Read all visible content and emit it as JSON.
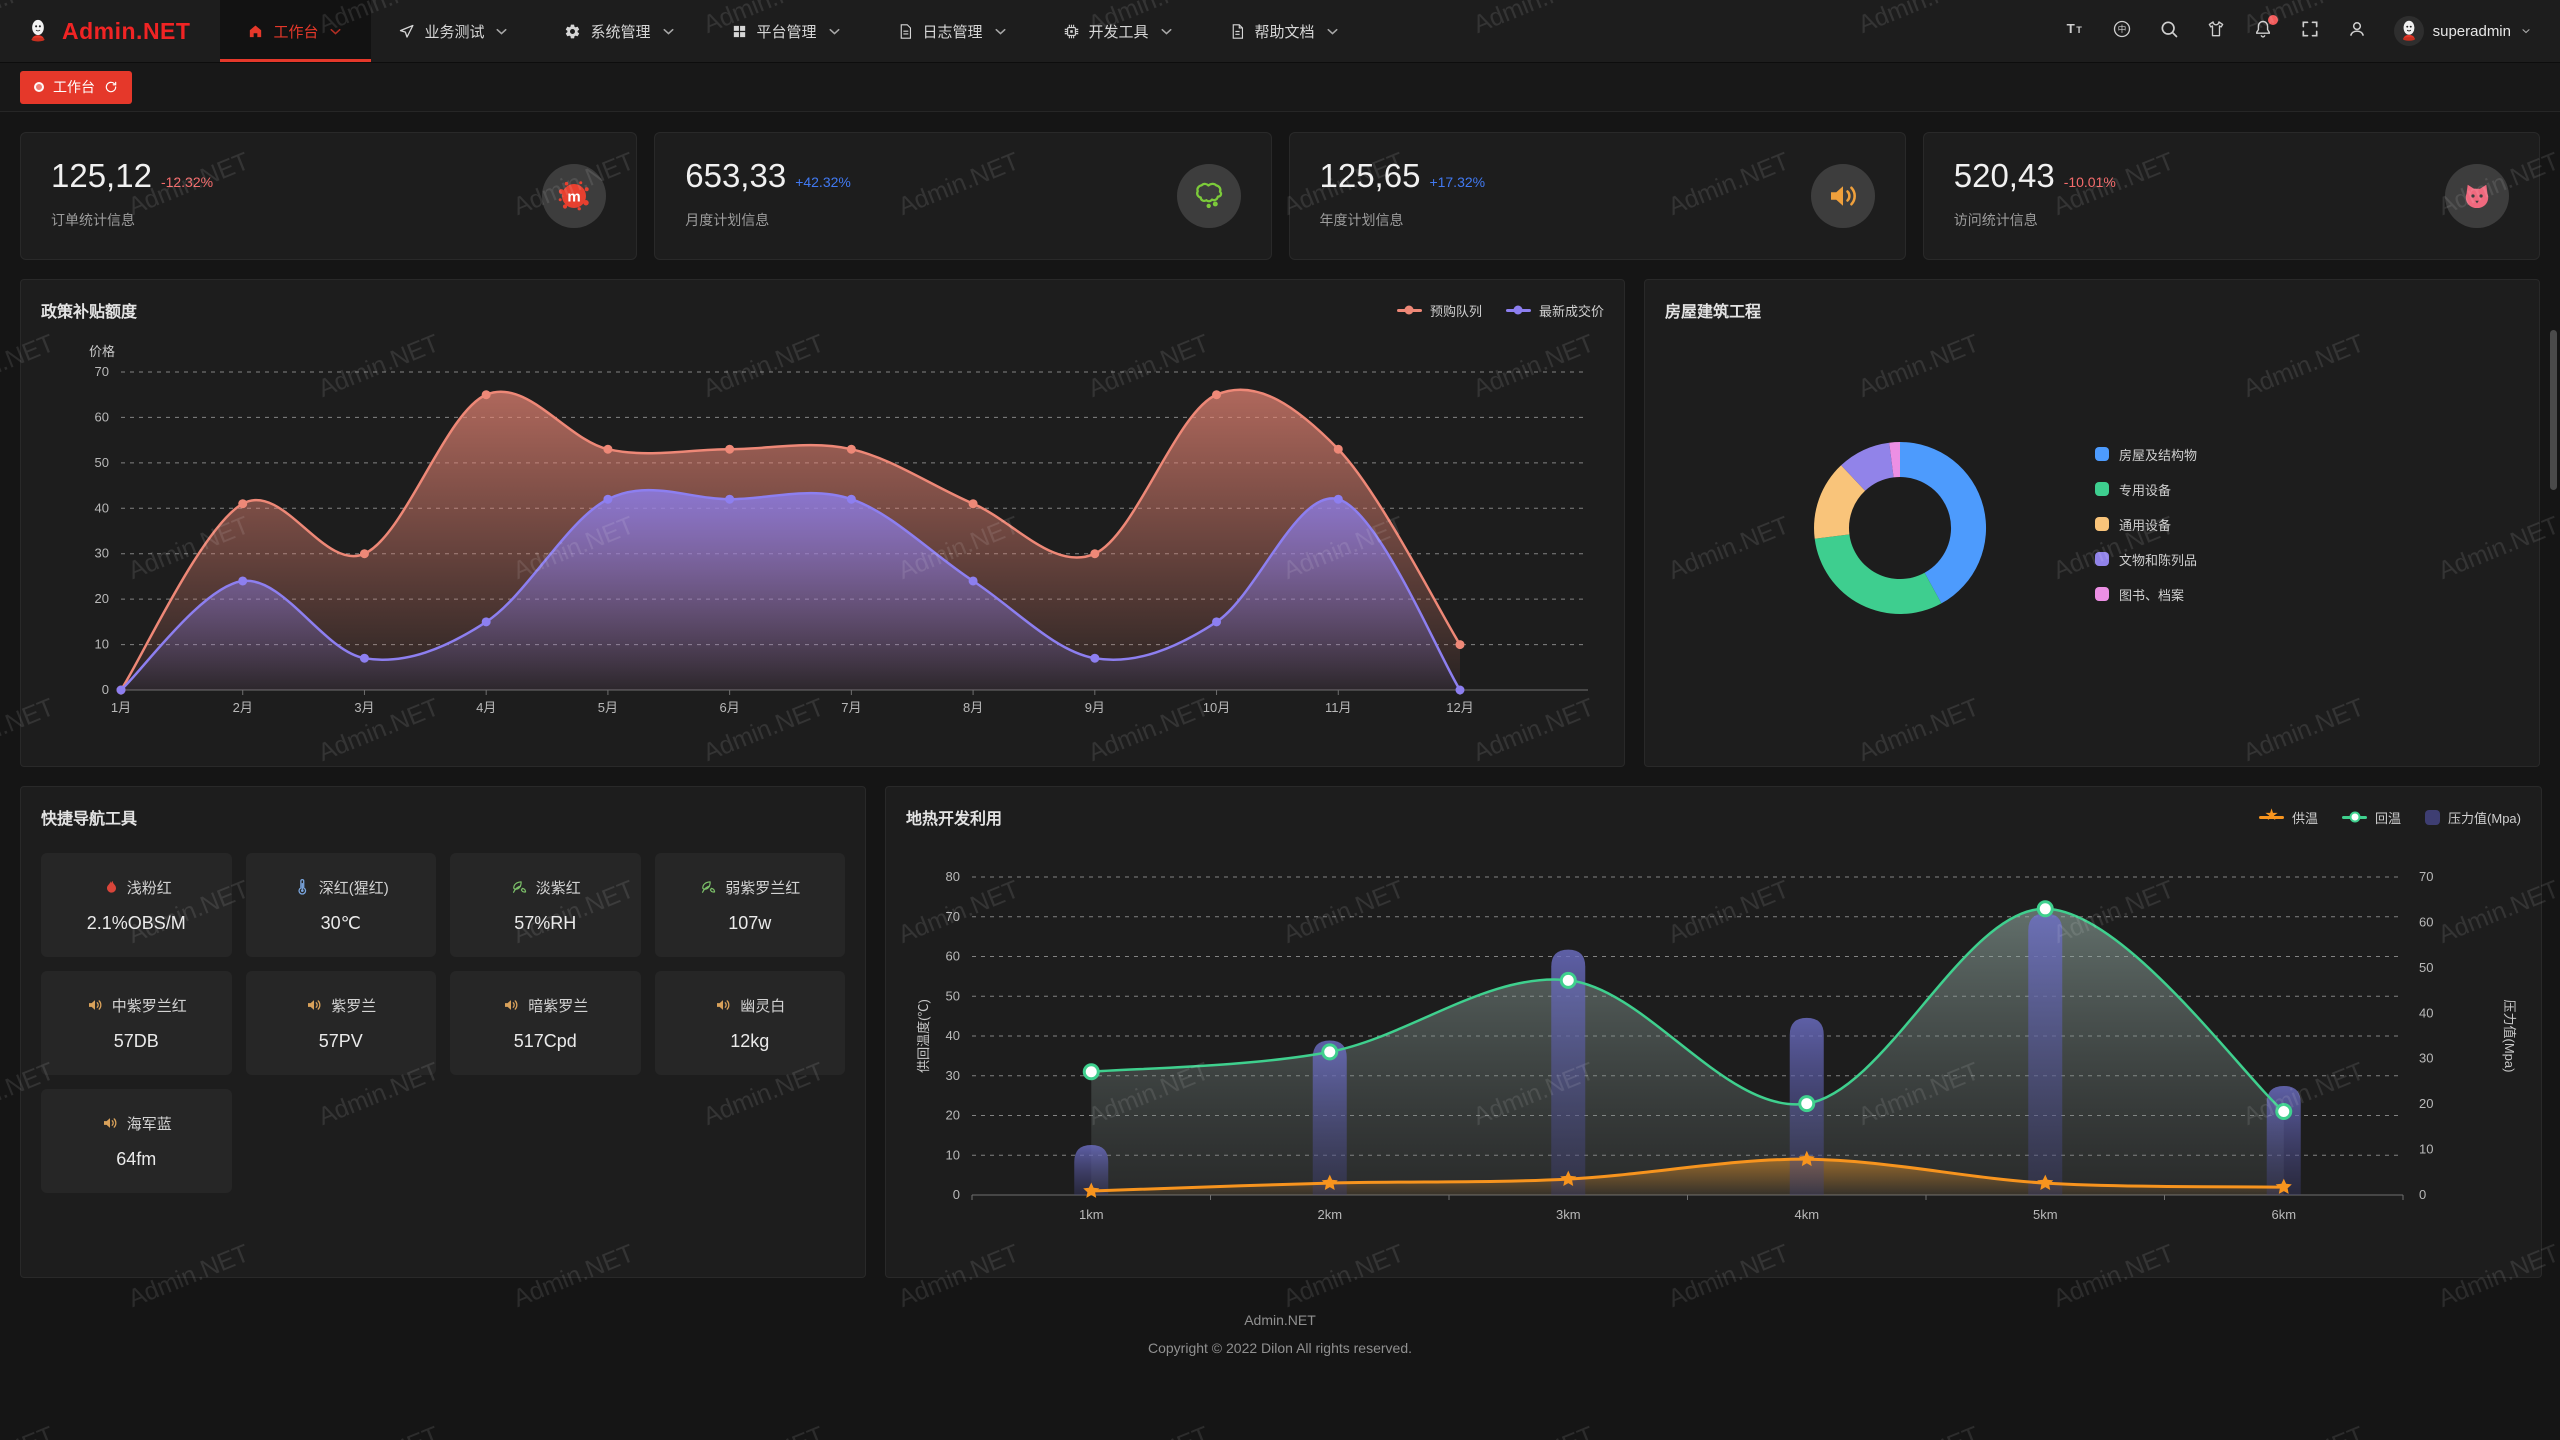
{
  "watermark_text": "Admin.NET",
  "navbar": {
    "logo_text": "Admin.NET",
    "menus": [
      {
        "id": "workbench",
        "label": "工作台",
        "icon": "home-icon",
        "active": true
      },
      {
        "id": "business-test",
        "label": "业务测试",
        "icon": "send-icon",
        "active": false
      },
      {
        "id": "system-manage",
        "label": "系统管理",
        "icon": "gear-icon",
        "active": false
      },
      {
        "id": "platform-manage",
        "label": "平台管理",
        "icon": "grid-icon",
        "active": false
      },
      {
        "id": "log-manage",
        "label": "日志管理",
        "icon": "log-icon",
        "active": false
      },
      {
        "id": "dev-tools",
        "label": "开发工具",
        "icon": "cpu-icon",
        "active": false
      },
      {
        "id": "help-docs",
        "label": "帮助文档",
        "icon": "doc-icon",
        "active": false
      }
    ],
    "actions": [
      {
        "id": "font-size",
        "icon": "font-size-icon",
        "badge": false
      },
      {
        "id": "language",
        "icon": "language-icon",
        "badge": false
      },
      {
        "id": "search",
        "icon": "search-icon",
        "badge": false
      },
      {
        "id": "theme",
        "icon": "theme-icon",
        "badge": false
      },
      {
        "id": "notifications",
        "icon": "bell-icon",
        "badge": true
      },
      {
        "id": "fullscreen",
        "icon": "fullscreen-icon",
        "badge": false
      },
      {
        "id": "profile",
        "icon": "user-icon",
        "badge": false
      }
    ],
    "user": "superadmin"
  },
  "tabbar": {
    "tabs": [
      {
        "label": "工作台",
        "active": true
      }
    ]
  },
  "stats": [
    {
      "value": "125,12",
      "delta": "-12.32%",
      "delta_color": "#F56C6C",
      "label": "订单统计信息",
      "icon": "paint-splat-icon",
      "icon_color": "#E8402F"
    },
    {
      "value": "653,33",
      "delta": "+42.32%",
      "delta_color": "#4179F1",
      "label": "月度计划信息",
      "icon": "china-map-icon",
      "icon_color": "#7CCB3A"
    },
    {
      "value": "125,65",
      "delta": "+17.32%",
      "delta_color": "#4179F1",
      "label": "年度计划信息",
      "icon": "speaker-icon",
      "icon_color": "#EFA03C"
    },
    {
      "value": "520,43",
      "delta": "-10.01%",
      "delta_color": "#F56C6C",
      "label": "访问统计信息",
      "icon": "cat-icon",
      "icon_color": "#F0697E"
    }
  ],
  "chart_data": [
    {
      "id": "policy-subsidy",
      "type": "line",
      "title": "政策补贴额度",
      "ylabel": "价格",
      "ylim": [
        0,
        70
      ],
      "ytick": 10,
      "grid": "dashed",
      "smooth": true,
      "area": true,
      "legend_position": "top-right",
      "categories": [
        "1月",
        "2月",
        "3月",
        "4月",
        "5月",
        "6月",
        "7月",
        "8月",
        "9月",
        "10月",
        "11月",
        "12月"
      ],
      "series": [
        {
          "name": "预购队列",
          "color": "#EE8877",
          "values": [
            0,
            41,
            30,
            65,
            53,
            53,
            53,
            41,
            30,
            65,
            53,
            10
          ]
        },
        {
          "name": "最新成交价",
          "color": "#8D7FF0",
          "values": [
            0,
            24,
            7,
            15,
            42,
            42,
            42,
            24,
            7,
            15,
            42,
            0
          ]
        }
      ]
    },
    {
      "id": "housing-construction",
      "type": "pie",
      "title": "房屋建筑工程",
      "donut": true,
      "legend_position": "right",
      "slices": [
        {
          "name": "房屋及结构物",
          "color": "#4D9BFD",
          "percent": 42
        },
        {
          "name": "专用设备",
          "color": "#3ECE8F",
          "percent": 31
        },
        {
          "name": "通用设备",
          "color": "#F9C47A",
          "percent": 15
        },
        {
          "name": "文物和陈列品",
          "color": "#9183E9",
          "percent": 10
        },
        {
          "name": "图书、档案",
          "color": "#EC8FE4",
          "percent": 2
        }
      ]
    },
    {
      "id": "geothermal",
      "type": "mixed",
      "title": "地热开发利用",
      "legend_position": "top-right",
      "categories": [
        "1km",
        "2km",
        "3km",
        "4km",
        "5km",
        "6km"
      ],
      "ylabel_left": "供回温度(℃)",
      "ylim_left": [
        0,
        80
      ],
      "ylabel_right": "压力值(Mpa)",
      "ylim_right": [
        0,
        70
      ],
      "grid": "dashed",
      "series": [
        {
          "name": "供温",
          "chart": "line",
          "marker": "star",
          "axis": "left",
          "color": "#F7941E",
          "values": [
            1,
            3,
            4,
            9,
            3,
            2
          ]
        },
        {
          "name": "回温",
          "chart": "line",
          "marker": "circle",
          "axis": "left",
          "color": "#3FD08E",
          "values": [
            31,
            36,
            54,
            23,
            72,
            21
          ]
        },
        {
          "name": "压力值(Mpa)",
          "chart": "bar",
          "axis": "right",
          "color": "#6467B0",
          "legend_color": "#3E3E72",
          "values": [
            11,
            34,
            54,
            39,
            62,
            24
          ]
        }
      ]
    }
  ],
  "quick_nav": {
    "title": "快捷导航工具",
    "items": [
      {
        "name": "浅粉红",
        "value": "2.1%OBS/M",
        "icon": "fire-icon",
        "icon_color": "#D9453A"
      },
      {
        "name": "深红(猩红)",
        "value": "30℃",
        "icon": "thermometer-icon",
        "icon_color": "#7BA7E0"
      },
      {
        "name": "淡紫红",
        "value": "57%RH",
        "icon": "leaf-icon",
        "icon_color": "#7CC069"
      },
      {
        "name": "弱紫罗兰红",
        "value": "107w",
        "icon": "leaf-icon",
        "icon_color": "#7CC069"
      },
      {
        "name": "中紫罗兰红",
        "value": "57DB",
        "icon": "speaker-icon",
        "icon_color": "#D9A15A"
      },
      {
        "name": "紫罗兰",
        "value": "57PV",
        "icon": "speaker-icon",
        "icon_color": "#D9A15A"
      },
      {
        "name": "暗紫罗兰",
        "value": "517Cpd",
        "icon": "speaker-icon",
        "icon_color": "#D9A15A"
      },
      {
        "name": "幽灵白",
        "value": "12kg",
        "icon": "speaker-icon",
        "icon_color": "#D9A15A"
      },
      {
        "name": "海军蓝",
        "value": "64fm",
        "icon": "speaker-icon",
        "icon_color": "#D9A15A"
      }
    ]
  },
  "footer": {
    "line1": "Admin.NET",
    "line2": "Copyright © 2022 Dilon All rights reserved."
  }
}
